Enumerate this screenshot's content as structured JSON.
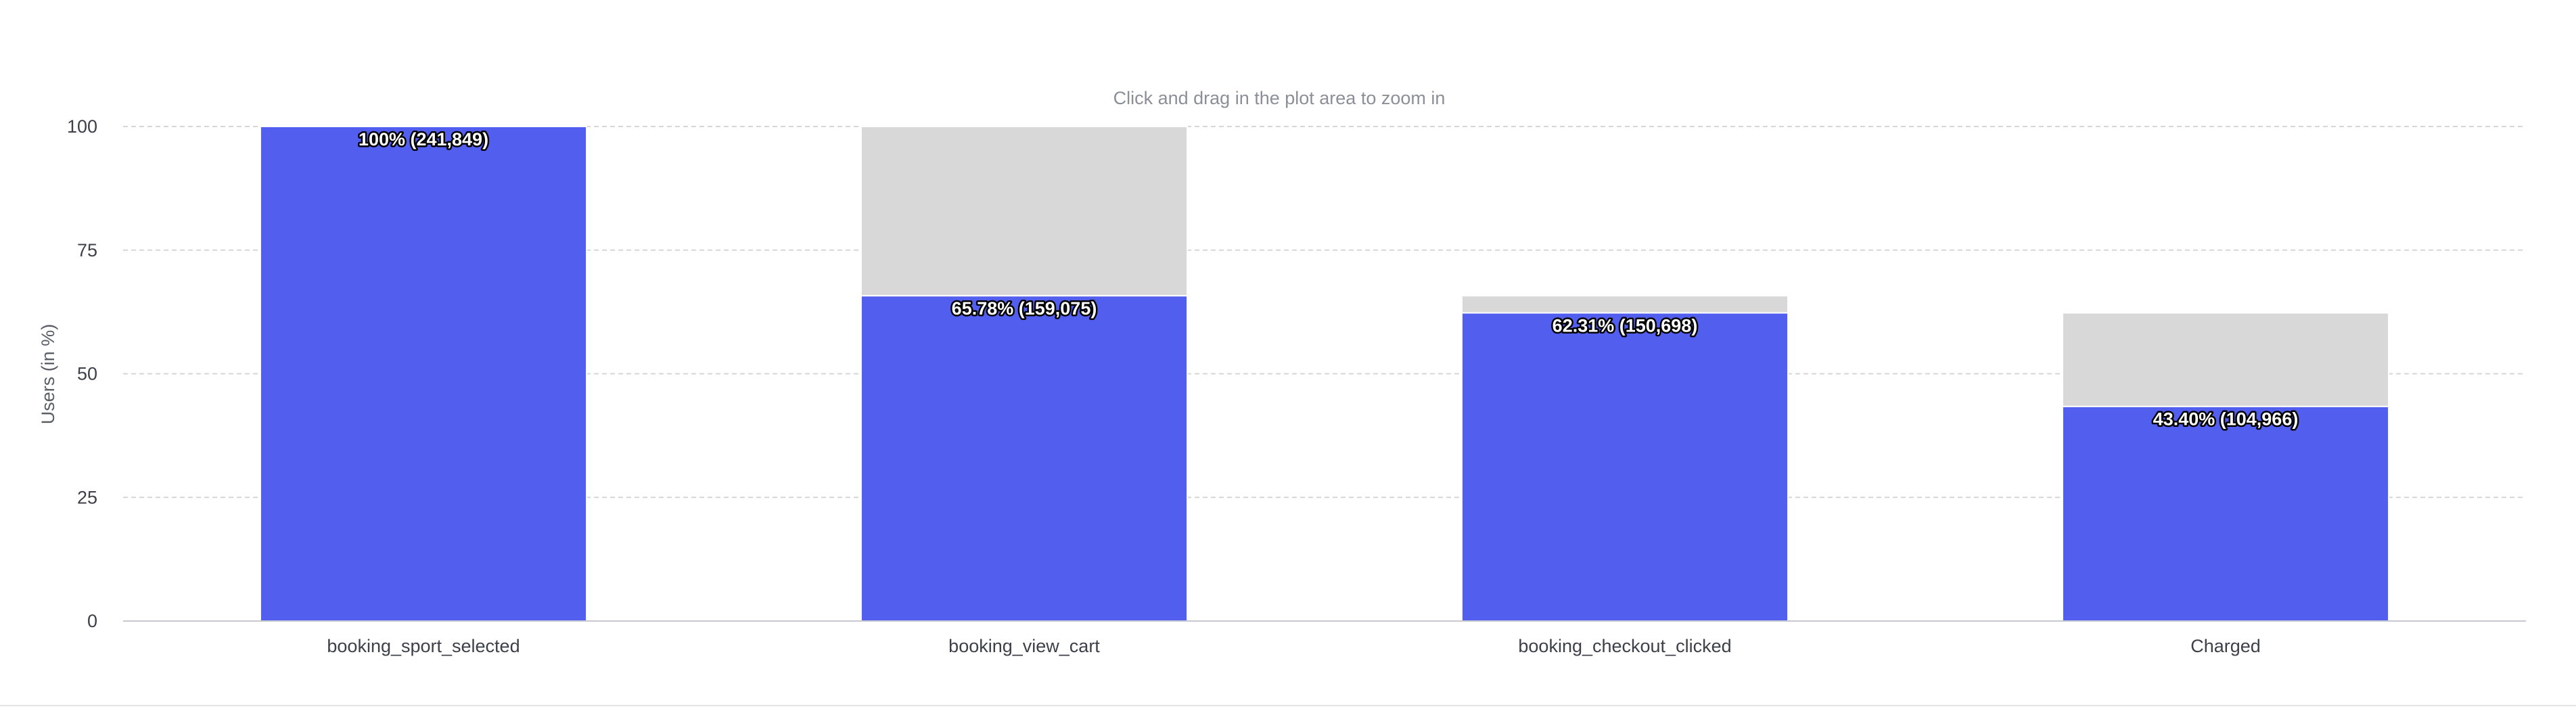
{
  "chart_data": {
    "type": "bar",
    "stacked": true,
    "hint": "Click and drag in the plot area to zoom in",
    "ylabel": "Users (in %)",
    "xlabel": "",
    "ylim": [
      0,
      100
    ],
    "yticks": [
      0,
      25,
      50,
      75,
      100
    ],
    "grid": true,
    "categories": [
      "booking_sport_selected",
      "booking_view_cart",
      "booking_checkout_clicked",
      "Charged"
    ],
    "series": [
      {
        "values": [
          100,
          65.78,
          62.31,
          43.4
        ],
        "color": "#525fee"
      },
      {
        "values": [
          0,
          34.22,
          3.47,
          18.91
        ],
        "color": "#d8d8d8"
      }
    ],
    "data_labels": [
      "100% (241,849)",
      "65.78% (159,075)",
      "62.31% (150,698)",
      "43.40% (104,966)"
    ]
  }
}
